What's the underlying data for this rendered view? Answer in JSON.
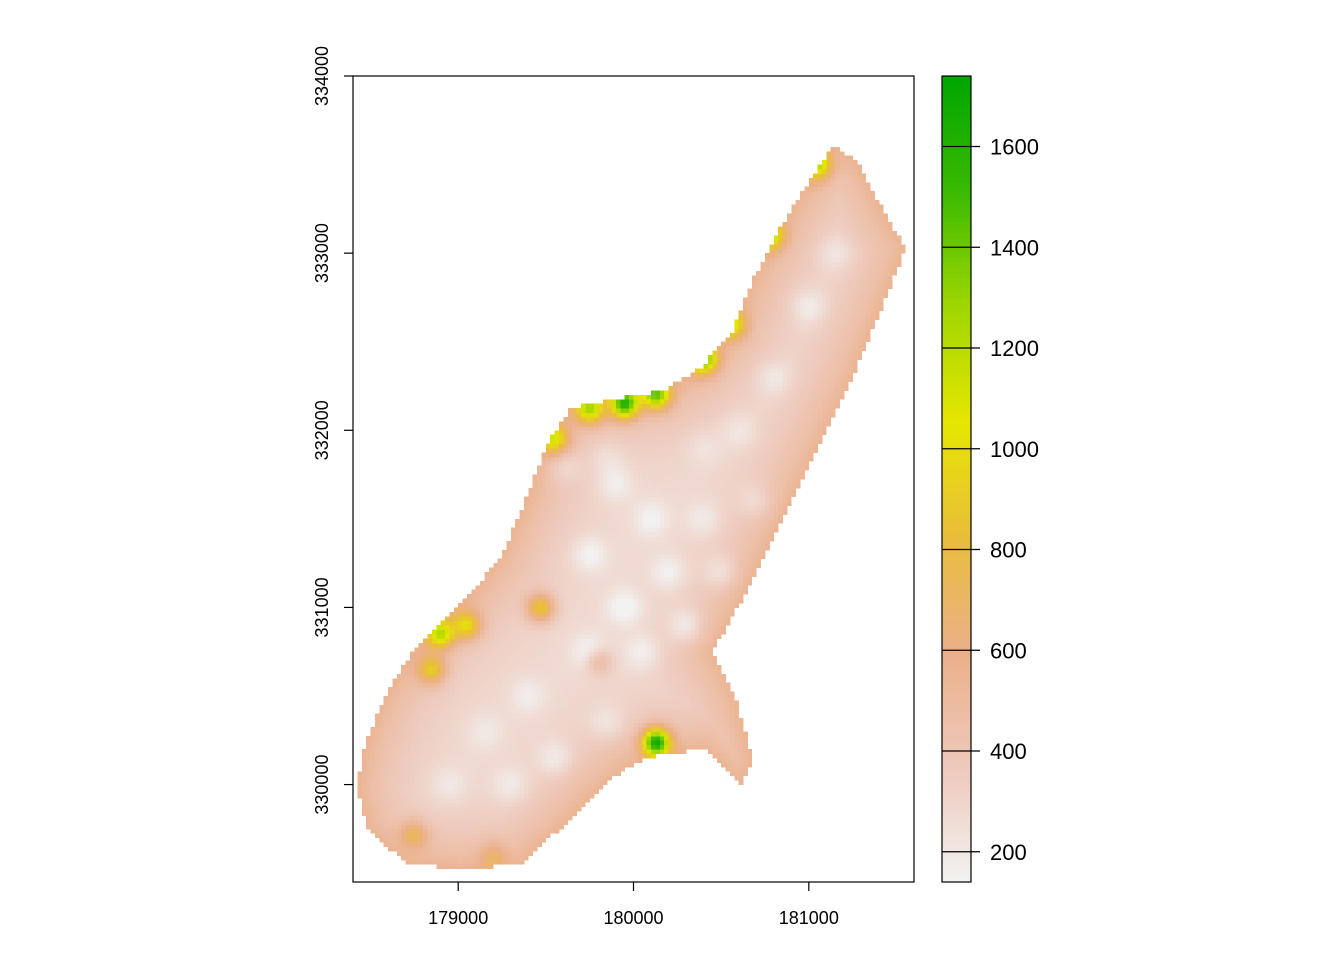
{
  "chart_data": {
    "type": "heatmap",
    "title": "",
    "xlabel": "",
    "ylabel": "",
    "xlim": [
      178400,
      181600
    ],
    "ylim": [
      329450,
      334000
    ],
    "x_ticks": [
      179000,
      180000,
      181000
    ],
    "y_ticks": [
      330000,
      331000,
      332000,
      333000,
      334000
    ],
    "x_tick_labels": [
      "179000",
      "180000",
      "181000"
    ],
    "y_tick_labels": [
      "330000",
      "331000",
      "332000",
      "333000",
      "334000"
    ],
    "grid": false,
    "legend": {
      "position": "right",
      "range": [
        140,
        1740
      ],
      "ticks": [
        200,
        400,
        600,
        800,
        1000,
        1200,
        1400,
        1600
      ],
      "tick_labels": [
        "200",
        "400",
        "600",
        "800",
        "1000",
        "1200",
        "1400",
        "1600"
      ],
      "colors": [
        "#f2f2f2",
        "#eec9bb",
        "#ebb08a",
        "#e9bd3b",
        "#e6e600",
        "#9fd600",
        "#3bba00",
        "#00a600"
      ]
    },
    "region_outline": [
      [
        178420,
        329980
      ],
      [
        178470,
        330230
      ],
      [
        178570,
        330480
      ],
      [
        178720,
        330720
      ],
      [
        178880,
        330880
      ],
      [
        179050,
        331050
      ],
      [
        179250,
        331300
      ],
      [
        179380,
        331600
      ],
      [
        179520,
        331950
      ],
      [
        179650,
        332130
      ],
      [
        179920,
        332180
      ],
      [
        180180,
        332230
      ],
      [
        180380,
        332350
      ],
      [
        180560,
        332550
      ],
      [
        180680,
        332850
      ],
      [
        180860,
        333180
      ],
      [
        181000,
        333400
      ],
      [
        181150,
        333620
      ],
      [
        181300,
        333480
      ],
      [
        181420,
        333250
      ],
      [
        181550,
        333030
      ],
      [
        181420,
        332700
      ],
      [
        181250,
        332300
      ],
      [
        181050,
        331900
      ],
      [
        180850,
        331500
      ],
      [
        180650,
        331100
      ],
      [
        180450,
        330750
      ],
      [
        180580,
        330500
      ],
      [
        180680,
        330150
      ],
      [
        180620,
        330000
      ],
      [
        180400,
        330200
      ],
      [
        180150,
        330170
      ],
      [
        179960,
        330100
      ],
      [
        179780,
        329950
      ],
      [
        179580,
        329750
      ],
      [
        179350,
        329550
      ],
      [
        179000,
        329520
      ],
      [
        178700,
        329560
      ],
      [
        178480,
        329750
      ]
    ],
    "points": [
      {
        "x": 179600,
        "y": 331800,
        "value": 260
      },
      {
        "x": 179900,
        "y": 331700,
        "value": 250
      },
      {
        "x": 179750,
        "y": 331300,
        "value": 220
      },
      {
        "x": 179950,
        "y": 331000,
        "value": 200
      },
      {
        "x": 180200,
        "y": 331200,
        "value": 230
      },
      {
        "x": 180400,
        "y": 331500,
        "value": 260
      },
      {
        "x": 180500,
        "y": 331200,
        "value": 240
      },
      {
        "x": 180300,
        "y": 330900,
        "value": 210
      },
      {
        "x": 180050,
        "y": 330750,
        "value": 230
      },
      {
        "x": 179750,
        "y": 330750,
        "value": 220
      },
      {
        "x": 179400,
        "y": 330500,
        "value": 270
      },
      {
        "x": 179150,
        "y": 330300,
        "value": 290
      },
      {
        "x": 178950,
        "y": 330000,
        "value": 280
      },
      {
        "x": 179300,
        "y": 330000,
        "value": 250
      },
      {
        "x": 179550,
        "y": 330150,
        "value": 240
      },
      {
        "x": 179850,
        "y": 330350,
        "value": 260
      },
      {
        "x": 180400,
        "y": 331900,
        "value": 300
      },
      {
        "x": 180800,
        "y": 332300,
        "value": 260
      },
      {
        "x": 181000,
        "y": 332700,
        "value": 240
      },
      {
        "x": 181150,
        "y": 333000,
        "value": 270
      },
      {
        "x": 180600,
        "y": 332000,
        "value": 280
      },
      {
        "x": 179850,
        "y": 331850,
        "value": 300
      },
      {
        "x": 180100,
        "y": 331500,
        "value": 240
      },
      {
        "x": 180700,
        "y": 331600,
        "value": 270
      }
    ],
    "hotspots": [
      {
        "x": 180130,
        "y": 330240,
        "value": 1650
      },
      {
        "x": 179950,
        "y": 332150,
        "value": 1550
      },
      {
        "x": 180130,
        "y": 332200,
        "value": 1350
      },
      {
        "x": 179750,
        "y": 332120,
        "value": 1200
      },
      {
        "x": 180400,
        "y": 332400,
        "value": 1300
      },
      {
        "x": 180560,
        "y": 332600,
        "value": 1050
      },
      {
        "x": 180780,
        "y": 333100,
        "value": 1100
      },
      {
        "x": 181050,
        "y": 333500,
        "value": 1100
      },
      {
        "x": 179470,
        "y": 331000,
        "value": 1000
      },
      {
        "x": 178900,
        "y": 330850,
        "value": 1150
      },
      {
        "x": 179050,
        "y": 330900,
        "value": 1000
      },
      {
        "x": 179550,
        "y": 331950,
        "value": 1050
      },
      {
        "x": 178850,
        "y": 330650,
        "value": 950
      },
      {
        "x": 178750,
        "y": 329720,
        "value": 780
      },
      {
        "x": 179800,
        "y": 330700,
        "value": 700
      },
      {
        "x": 179200,
        "y": 329600,
        "value": 650
      }
    ]
  }
}
